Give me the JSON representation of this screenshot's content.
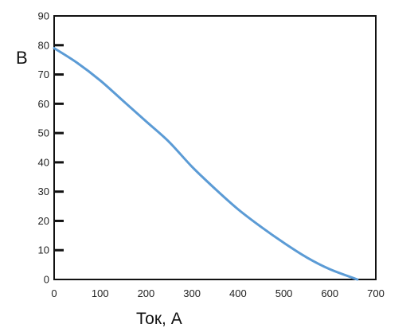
{
  "chart_data": {
    "type": "line",
    "title": "",
    "xlabel": "Ток, А",
    "ylabel": "В",
    "xlim": [
      0,
      700
    ],
    "ylim": [
      0,
      90
    ],
    "x_ticks": [
      0,
      100,
      200,
      300,
      400,
      500,
      600,
      700
    ],
    "y_ticks": [
      0,
      10,
      20,
      30,
      40,
      50,
      60,
      70,
      80,
      90
    ],
    "grid": false,
    "legend": "none",
    "series": [
      {
        "color": "#5b9bd5",
        "points": [
          {
            "x": 0,
            "y": 79
          },
          {
            "x": 50,
            "y": 74
          },
          {
            "x": 100,
            "y": 68
          },
          {
            "x": 150,
            "y": 61
          },
          {
            "x": 200,
            "y": 54
          },
          {
            "x": 250,
            "y": 47
          },
          {
            "x": 300,
            "y": 38.5
          },
          {
            "x": 350,
            "y": 31
          },
          {
            "x": 400,
            "y": 24
          },
          {
            "x": 450,
            "y": 18
          },
          {
            "x": 500,
            "y": 12.5
          },
          {
            "x": 550,
            "y": 7.5
          },
          {
            "x": 600,
            "y": 3.5
          },
          {
            "x": 660,
            "y": 0
          }
        ]
      }
    ]
  }
}
